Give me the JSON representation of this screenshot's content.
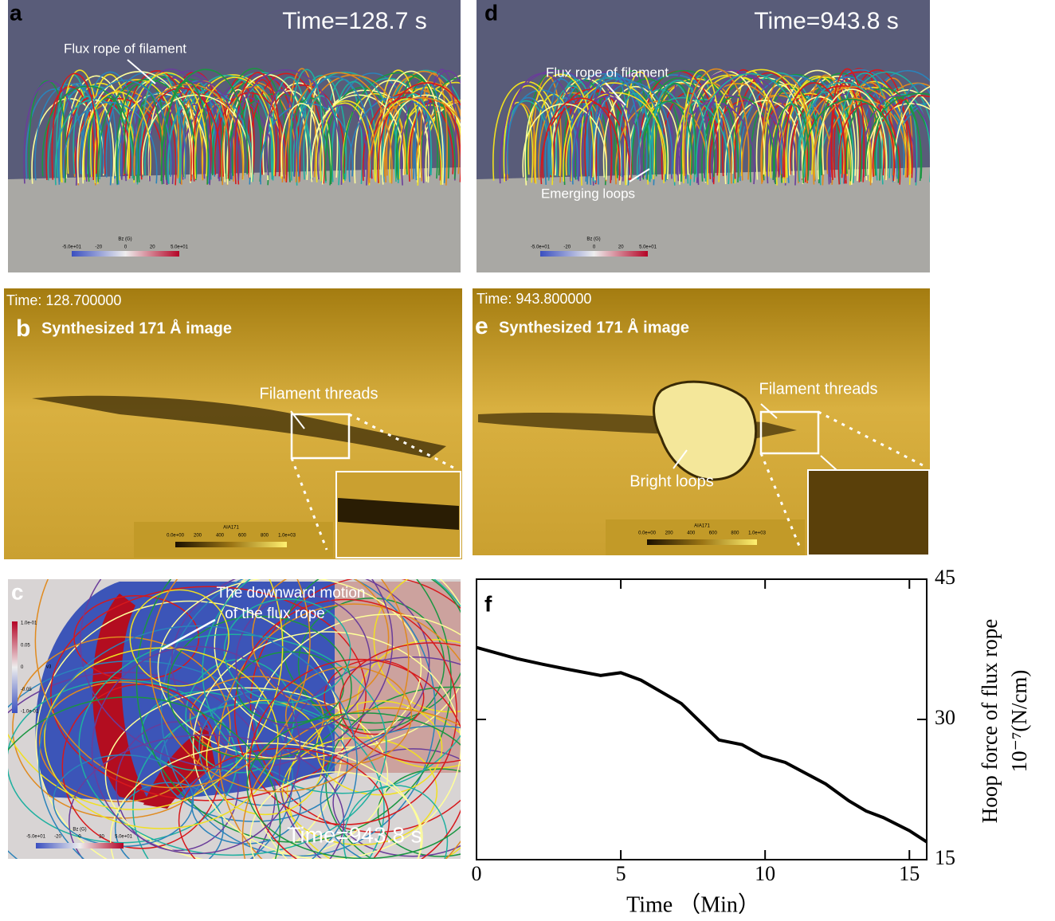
{
  "panels": {
    "a": {
      "label": "a",
      "time": "Time=128.7 s",
      "annotation": "Flux rope of filament",
      "colorbar": {
        "title": "Bz (G)",
        "ticks": [
          "-5.0e+01",
          "-20",
          "0",
          "20",
          "5.0e+01"
        ]
      }
    },
    "d": {
      "label": "d",
      "time": "Time=943.8 s",
      "annotations": [
        "Flux rope of filament",
        "Emerging loops"
      ],
      "colorbar": {
        "title": "Bz (G)",
        "ticks": [
          "-5.0e+01",
          "-20",
          "0",
          "20",
          "5.0e+01"
        ]
      }
    },
    "b": {
      "label": "b",
      "time": "Time: 128.700000",
      "title": "Synthesized 171 Å image",
      "annotation": "Filament threads",
      "colorbar": {
        "title": "AIA171",
        "ticks": [
          "0.0e+00",
          "200",
          "400",
          "600",
          "800",
          "1.0e+03"
        ]
      }
    },
    "e": {
      "label": "e",
      "time": "Time: 943.800000",
      "title": "Synthesized 171 Å image",
      "annotations": [
        "Filament threads",
        "Bright loops"
      ],
      "colorbar": {
        "title": "AIA171",
        "ticks": [
          "0.0e+00",
          "200",
          "400",
          "600",
          "800",
          "1.0e+03"
        ]
      }
    },
    "c": {
      "label": "c",
      "annotation": [
        "The downward motion",
        "of the flux rope"
      ],
      "time": "Time=943.8 s",
      "colorbar": {
        "title": "Bz (G)",
        "ticks": [
          "-5.0e+01",
          "-20",
          "0",
          "20",
          "5.0e+01"
        ]
      },
      "colorbar_v": {
        "title": "v3",
        "ticks": [
          "1.0e-01",
          "0.05",
          "0",
          "-0.05",
          "-1.0e-01"
        ]
      }
    }
  },
  "chart_data": {
    "type": "line",
    "panel_label": "f",
    "x_label": "Time （Min）",
    "y_label": [
      "Hoop force of flux rope",
      "10⁻⁷(N/cm)"
    ],
    "y_axis_side": "right",
    "xlim": [
      0,
      15.6
    ],
    "xticks": [
      0,
      5,
      10,
      15
    ],
    "ylim": [
      15,
      45
    ],
    "yticks": [
      15,
      30,
      45
    ],
    "series": [
      {
        "color": "#000000",
        "x": [
          0,
          1.4,
          2.3,
          3.1,
          4.3,
          5.0,
          5.7,
          7.1,
          8.4,
          9.2,
          9.9,
          10.7,
          12.1,
          12.9,
          13.5,
          14.1,
          15.0,
          15.6
        ],
        "values": [
          37.7,
          36.5,
          35.9,
          35.4,
          34.7,
          35.0,
          34.2,
          31.7,
          27.8,
          27.3,
          26.1,
          25.4,
          23.1,
          21.3,
          20.2,
          19.5,
          18.1,
          16.9
        ]
      }
    ]
  }
}
